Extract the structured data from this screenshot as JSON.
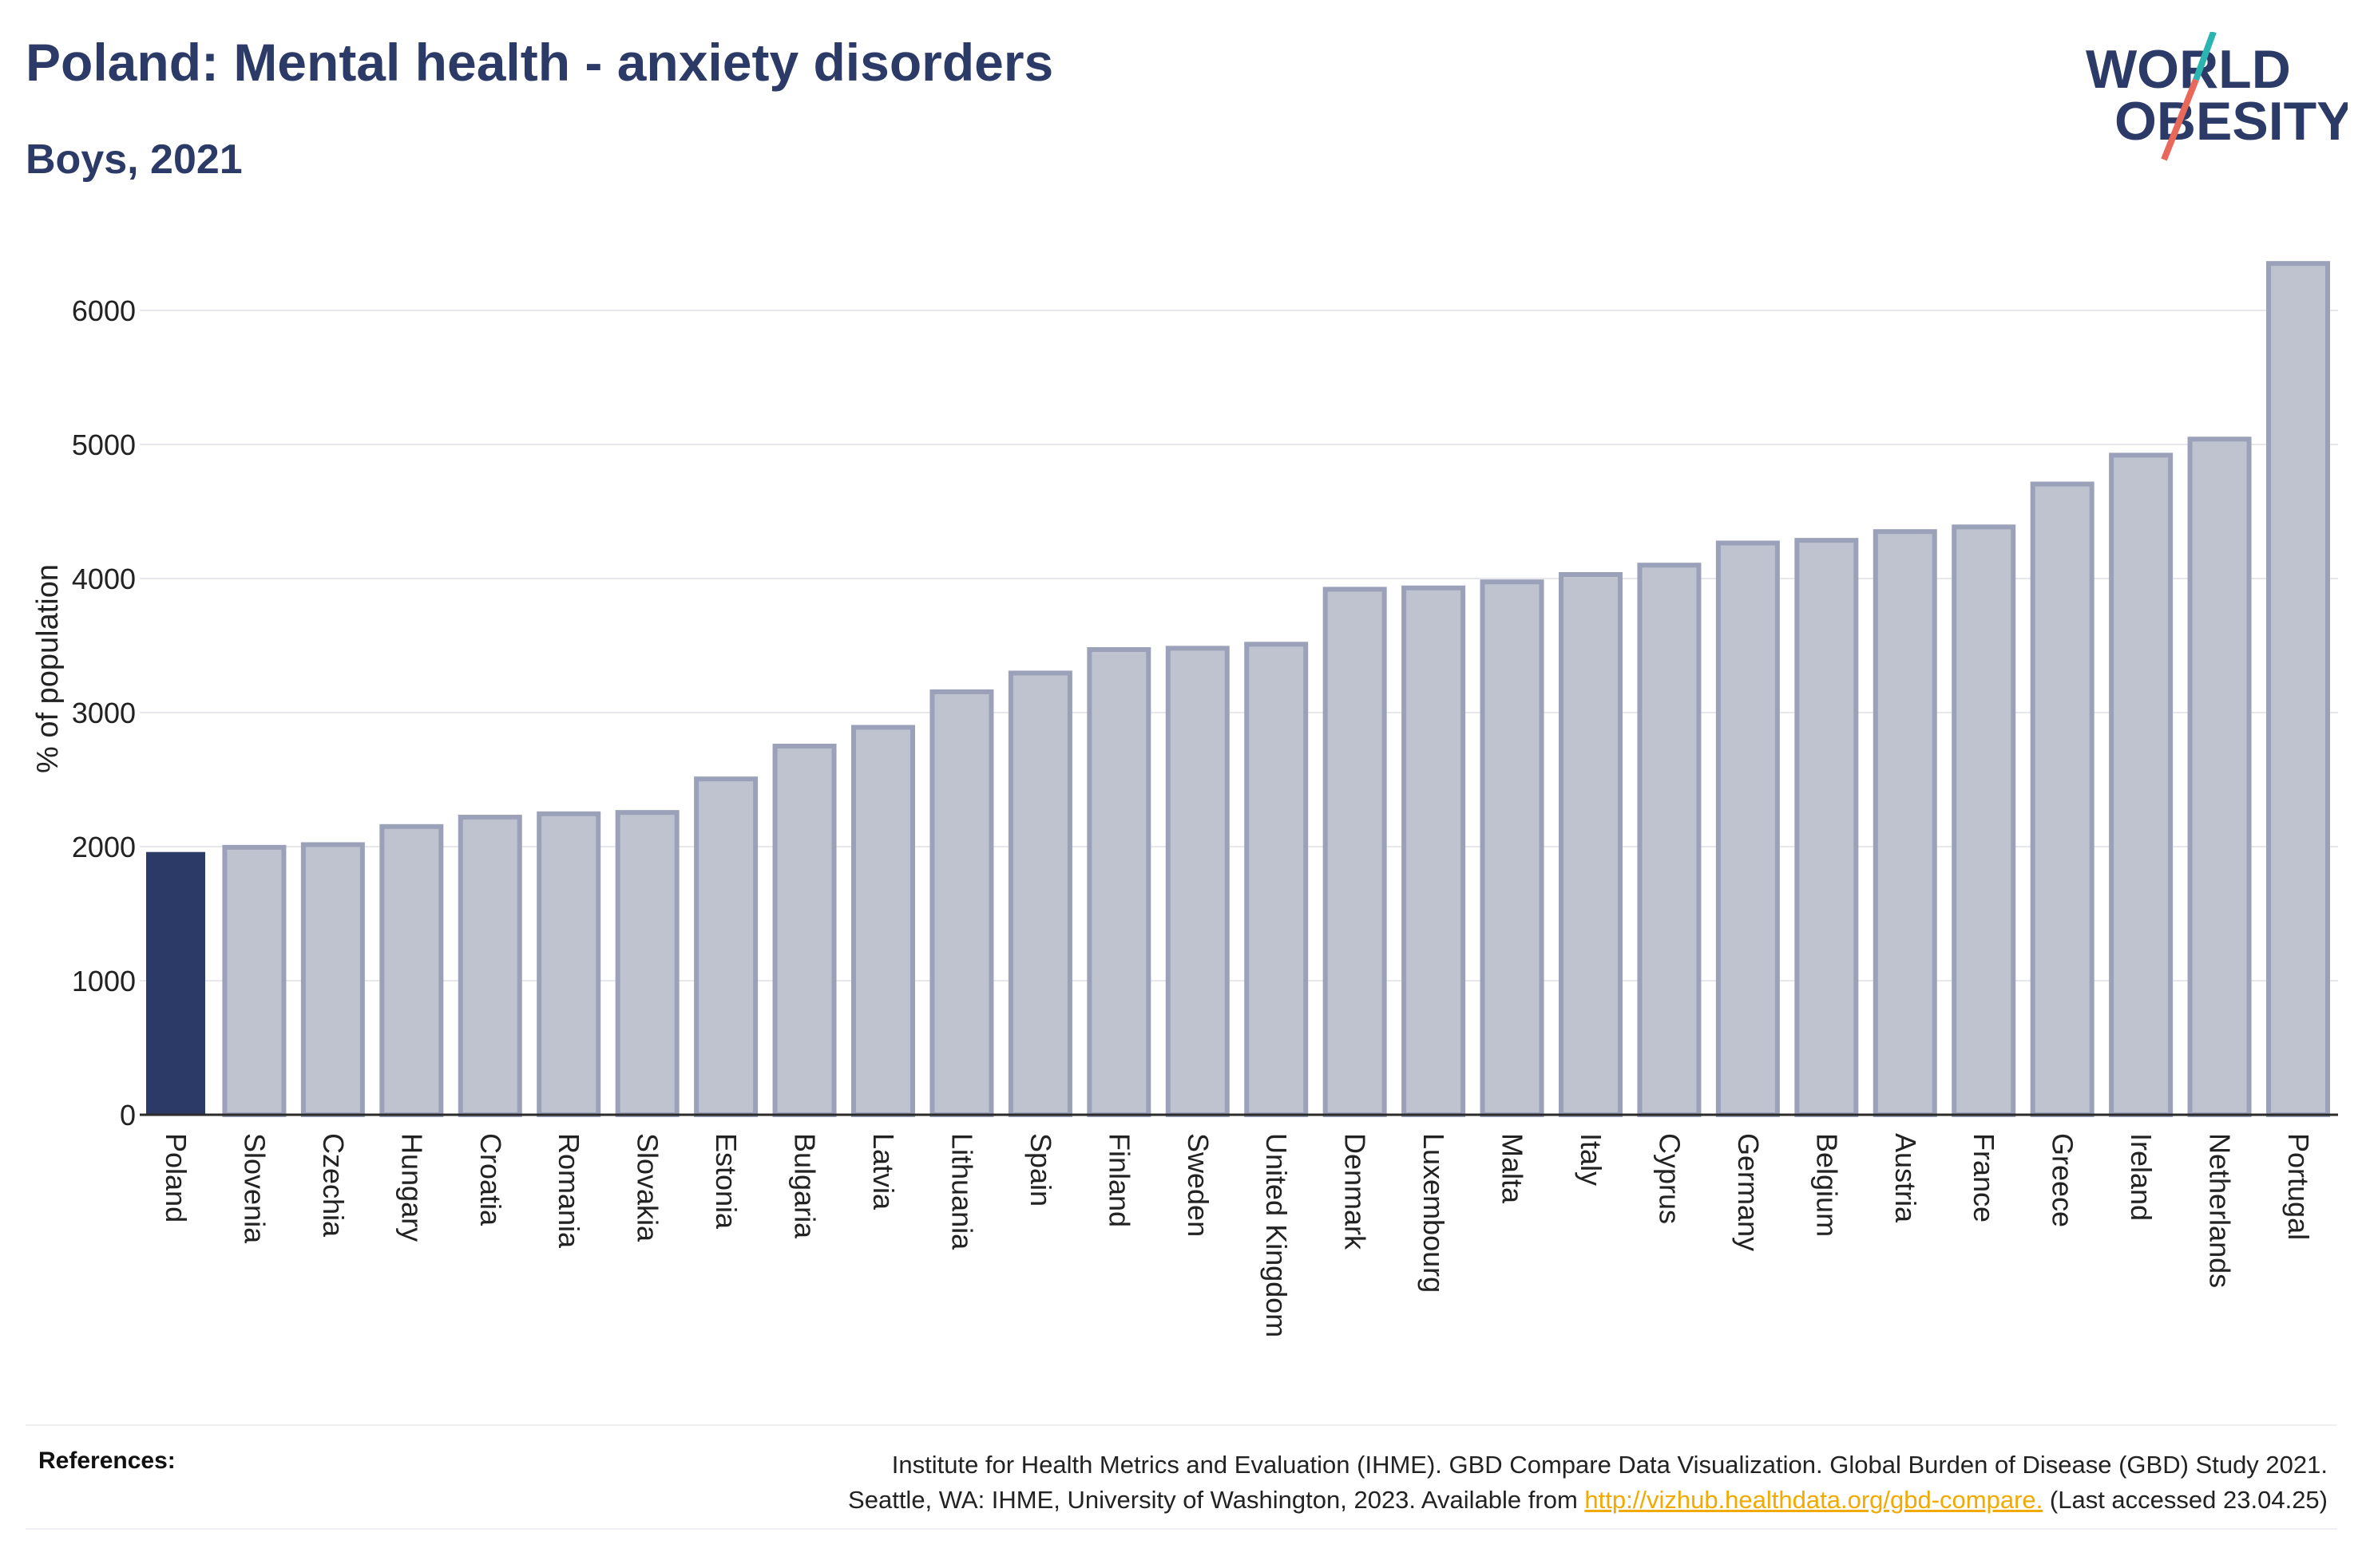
{
  "header": {
    "title": "Poland: Mental health - anxiety disorders",
    "subtitle": "Boys, 2021"
  },
  "logo": {
    "line1": "WORLD",
    "line2": "OBESITY",
    "icon": "world-obesity-logo"
  },
  "colors": {
    "highlight": "#2b3a67",
    "bar": "#bfc3d0",
    "bar_edge": "#9aa1b8",
    "grid": "#e6e8ee",
    "accent_link": "#f2a900",
    "logo_slash_teal": "#2cb5b0",
    "logo_slash_red": "#e8685a"
  },
  "chart_data": {
    "type": "bar",
    "title": "Poland: Mental health - anxiety disorders",
    "subtitle": "Boys, 2021",
    "ylabel": "% of population",
    "xlabel": "",
    "ylim": [
      0,
      6500
    ],
    "yticks": [
      0,
      1000,
      2000,
      3000,
      4000,
      5000,
      6000
    ],
    "grid": true,
    "highlight": "Poland",
    "categories": [
      "Poland",
      "Slovenia",
      "Czechia",
      "Hungary",
      "Croatia",
      "Romania",
      "Slovakia",
      "Estonia",
      "Bulgaria",
      "Latvia",
      "Lithuania",
      "Spain",
      "Finland",
      "Sweden",
      "United Kingdom",
      "Denmark",
      "Luxembourg",
      "Malta",
      "Italy",
      "Cyprus",
      "Germany",
      "Belgium",
      "Austria",
      "France",
      "Greece",
      "Ireland",
      "Netherlands",
      "Portugal"
    ],
    "values": [
      1960,
      1995,
      2015,
      2150,
      2220,
      2245,
      2255,
      2505,
      2750,
      2890,
      3155,
      3295,
      3470,
      3480,
      3510,
      3920,
      3930,
      3975,
      4030,
      4100,
      4265,
      4285,
      4350,
      4385,
      4705,
      4920,
      5040,
      6350
    ]
  },
  "references": {
    "label": "References:",
    "line1": "Institute for Health Metrics and Evaluation (IHME). GBD Compare Data Visualization. Global Burden of Disease (GBD) Study 2021.",
    "line2_prefix": "Seattle, WA: IHME, University of Washington, 2023. Available from ",
    "link": "http://vizhub.healthdata.org/gbd-compare.",
    "line2_suffix": " (Last accessed 23.04.25)"
  }
}
